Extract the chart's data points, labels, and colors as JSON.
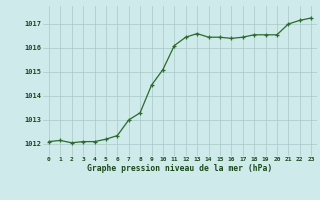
{
  "x": [
    0,
    1,
    2,
    3,
    4,
    5,
    6,
    7,
    8,
    9,
    10,
    11,
    12,
    13,
    14,
    15,
    16,
    17,
    18,
    19,
    20,
    21,
    22,
    23
  ],
  "y": [
    1012.1,
    1012.15,
    1012.05,
    1012.1,
    1012.1,
    1012.2,
    1012.35,
    1013.0,
    1013.3,
    1014.45,
    1015.1,
    1016.1,
    1016.45,
    1016.6,
    1016.45,
    1016.45,
    1016.4,
    1016.45,
    1016.55,
    1016.55,
    1016.55,
    1017.0,
    1017.15,
    1017.25
  ],
  "line_color": "#2d6a2d",
  "marker_color": "#2d6a2d",
  "bg_color": "#ceeaea",
  "grid_color": "#a8c8c8",
  "xlabel": "Graphe pression niveau de la mer (hPa)",
  "xlabel_color": "#1a4a1a",
  "tick_color": "#1a4a1a",
  "ylim_min": 1011.5,
  "ylim_max": 1017.75,
  "yticks": [
    1012,
    1013,
    1014,
    1015,
    1016,
    1017
  ],
  "xticks": [
    0,
    1,
    2,
    3,
    4,
    5,
    6,
    7,
    8,
    9,
    10,
    11,
    12,
    13,
    14,
    15,
    16,
    17,
    18,
    19,
    20,
    21,
    22,
    23
  ]
}
